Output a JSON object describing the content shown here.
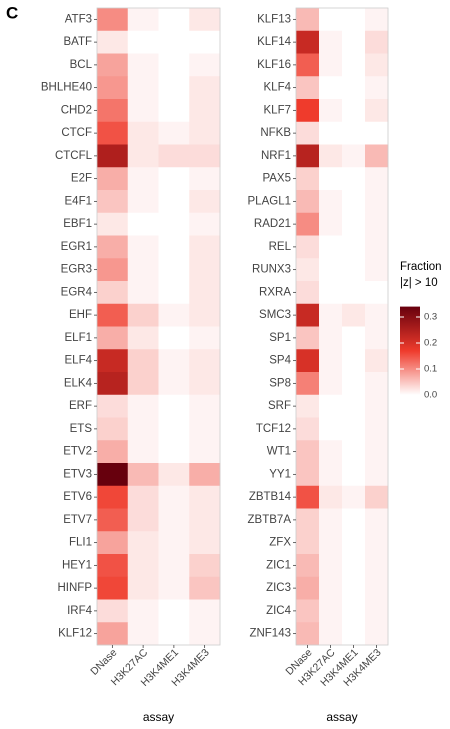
{
  "panel_label": "C",
  "colorbar": {
    "title": "Fraction",
    "subtitle": "|z| > 10",
    "lim": [
      0,
      0.34
    ],
    "ticks": [
      {
        "value": 0,
        "label": "0.0"
      },
      0.1,
      0.2,
      0.3
    ],
    "colors": [
      "#ffffff",
      "#ef3b2c",
      "#67000d"
    ]
  },
  "chart_data": [
    {
      "type": "heatmap",
      "xlabel": "assay",
      "x": [
        "DNase",
        "H3K27AC",
        "H3K4ME1",
        "H3K4ME3"
      ],
      "y": [
        "ATF3",
        "BATF",
        "BCL",
        "BHLHE40",
        "CHD2",
        "CTCF",
        "CTCFL",
        "E2F",
        "E4F1",
        "EBF1",
        "EGR1",
        "EGR3",
        "EGR4",
        "EHF",
        "ELF1",
        "ELF4",
        "ELK4",
        "ERF",
        "ETS",
        "ETV2",
        "ETV3",
        "ETV6",
        "ETV7",
        "FLI1",
        "HEY1",
        "HINFP",
        "IRF4",
        "KLF12"
      ],
      "values": [
        [
          0.1,
          0.01,
          0,
          0.02
        ],
        [
          0.02,
          0,
          0,
          0
        ],
        [
          0.08,
          0.01,
          0,
          0.01
        ],
        [
          0.09,
          0.01,
          0,
          0.02
        ],
        [
          0.12,
          0.01,
          0,
          0.02
        ],
        [
          0.15,
          0.02,
          0.01,
          0.02
        ],
        [
          0.25,
          0.02,
          0.03,
          0.03
        ],
        [
          0.07,
          0.01,
          0,
          0.01
        ],
        [
          0.05,
          0.01,
          0,
          0.02
        ],
        [
          0.02,
          0,
          0,
          0.01
        ],
        [
          0.07,
          0.01,
          0,
          0.02
        ],
        [
          0.09,
          0.01,
          0,
          0.02
        ],
        [
          0.04,
          0.01,
          0,
          0.02
        ],
        [
          0.14,
          0.04,
          0.01,
          0.02
        ],
        [
          0.07,
          0.02,
          0,
          0.01
        ],
        [
          0.22,
          0.04,
          0.01,
          0.02
        ],
        [
          0.24,
          0.04,
          0.01,
          0.02
        ],
        [
          0.03,
          0.01,
          0,
          0.01
        ],
        [
          0.04,
          0.01,
          0,
          0.01
        ],
        [
          0.07,
          0.01,
          0,
          0.01
        ],
        [
          0.34,
          0.06,
          0.02,
          0.07
        ],
        [
          0.16,
          0.03,
          0.01,
          0.02
        ],
        [
          0.14,
          0.03,
          0.01,
          0.02
        ],
        [
          0.08,
          0.02,
          0.01,
          0.02
        ],
        [
          0.15,
          0.02,
          0.01,
          0.04
        ],
        [
          0.16,
          0.02,
          0.01,
          0.05
        ],
        [
          0.03,
          0.01,
          0,
          0.01
        ],
        [
          0.08,
          0.01,
          0,
          0.01
        ]
      ]
    },
    {
      "type": "heatmap",
      "xlabel": "assay",
      "x": [
        "DNase",
        "H3K27AC",
        "H3K4ME1",
        "H3K4ME3"
      ],
      "y": [
        "KLF13",
        "KLF14",
        "KLF16",
        "KLF4",
        "KLF7",
        "NFKB",
        "NRF1",
        "PAX5",
        "PLAGL1",
        "RAD21",
        "REL",
        "RUNX3",
        "RXRA",
        "SMC3",
        "SP1",
        "SP4",
        "SP8",
        "SRF",
        "TCF12",
        "WT1",
        "YY1",
        "ZBTB14",
        "ZBTB7A",
        "ZFX",
        "ZIC1",
        "ZIC3",
        "ZIC4",
        "ZNF143"
      ],
      "values": [
        [
          0.06,
          0,
          0,
          0.01
        ],
        [
          0.22,
          0.01,
          0,
          0.03
        ],
        [
          0.14,
          0.01,
          0,
          0.02
        ],
        [
          0.05,
          0,
          0,
          0.01
        ],
        [
          0.17,
          0.01,
          0,
          0.02
        ],
        [
          0.03,
          0,
          0,
          0
        ],
        [
          0.24,
          0.02,
          0.01,
          0.06
        ],
        [
          0.04,
          0,
          0,
          0.01
        ],
        [
          0.06,
          0.01,
          0,
          0.01
        ],
        [
          0.1,
          0.01,
          0,
          0.01
        ],
        [
          0.03,
          0,
          0,
          0.01
        ],
        [
          0.02,
          0,
          0,
          0.01
        ],
        [
          0.03,
          0,
          0,
          0
        ],
        [
          0.22,
          0.01,
          0.02,
          0.01
        ],
        [
          0.05,
          0.01,
          0,
          0.01
        ],
        [
          0.2,
          0.01,
          0,
          0.02
        ],
        [
          0.11,
          0.01,
          0,
          0.01
        ],
        [
          0.02,
          0,
          0,
          0.01
        ],
        [
          0.03,
          0,
          0,
          0.01
        ],
        [
          0.05,
          0.01,
          0,
          0.01
        ],
        [
          0.05,
          0.01,
          0,
          0.01
        ],
        [
          0.15,
          0.02,
          0.01,
          0.04
        ],
        [
          0.04,
          0.01,
          0,
          0.01
        ],
        [
          0.04,
          0.01,
          0,
          0.01
        ],
        [
          0.06,
          0.01,
          0,
          0.01
        ],
        [
          0.07,
          0.01,
          0,
          0.01
        ],
        [
          0.05,
          0.01,
          0,
          0.01
        ],
        [
          0.06,
          0.01,
          0,
          0.01
        ]
      ]
    }
  ]
}
